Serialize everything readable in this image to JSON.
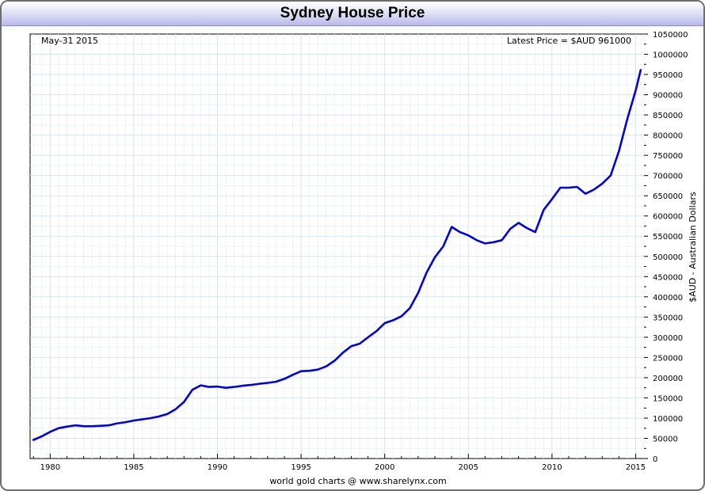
{
  "chart_data": {
    "type": "line",
    "title": "Sydney House Price",
    "date_label": "May-31  2015",
    "latest_label": "Latest Price = $AUD 961000",
    "ylabel": "$AUD - Australian Dollars",
    "footer": "world gold charts @ www.sharelynx.com",
    "xlim": [
      1978.8,
      2015.5
    ],
    "ylim": [
      0,
      1050000
    ],
    "x_ticks": [
      1980,
      1985,
      1990,
      1995,
      2000,
      2005,
      2010,
      2015
    ],
    "y_ticks": [
      0,
      50000,
      100000,
      150000,
      200000,
      250000,
      300000,
      350000,
      400000,
      450000,
      500000,
      550000,
      600000,
      650000,
      700000,
      750000,
      800000,
      850000,
      900000,
      950000,
      1000000,
      1050000
    ],
    "grid": true,
    "line_color": "#0000e6",
    "series": [
      {
        "x": [
          1979.0,
          1979.5,
          1980.0,
          1980.5,
          1981.0,
          1981.5,
          1982.0,
          1982.5,
          1983.0,
          1983.5,
          1984.0,
          1984.5,
          1985.0,
          1985.5,
          1986.0,
          1986.5,
          1987.0,
          1987.5,
          1988.0,
          1988.5,
          1989.0,
          1989.5,
          1990.0,
          1990.5,
          1991.0,
          1991.5,
          1992.0,
          1992.5,
          1993.0,
          1993.5,
          1994.0,
          1994.5,
          1995.0,
          1995.5,
          1996.0,
          1996.5,
          1997.0,
          1997.5,
          1998.0,
          1998.5,
          1999.0,
          1999.5,
          2000.0,
          2000.5,
          2001.0,
          2001.5,
          2002.0,
          2002.5,
          2003.0,
          2003.5,
          2004.0,
          2004.5,
          2005.0,
          2005.5,
          2006.0,
          2006.5,
          2007.0,
          2007.5,
          2008.0,
          2008.5,
          2009.0,
          2009.5,
          2010.0,
          2010.5,
          2011.0,
          2011.5,
          2012.0,
          2012.5,
          2013.0,
          2013.5,
          2014.0,
          2014.5,
          2015.0,
          2015.3
        ],
        "y": [
          46000,
          55000,
          66000,
          75000,
          79000,
          82000,
          80000,
          80000,
          81000,
          82000,
          87000,
          90000,
          94000,
          97000,
          100000,
          104000,
          110000,
          122000,
          140000,
          170000,
          181000,
          177000,
          178000,
          175000,
          177000,
          180000,
          182000,
          185000,
          187000,
          190000,
          197000,
          207000,
          216000,
          217000,
          220000,
          228000,
          242000,
          262000,
          278000,
          284000,
          300000,
          315000,
          335000,
          342000,
          352000,
          372000,
          410000,
          460000,
          498000,
          525000,
          573000,
          560000,
          552000,
          540000,
          532000,
          535000,
          540000,
          568000,
          583000,
          570000,
          560000,
          615000,
          642000,
          670000,
          670000,
          672000,
          655000,
          665000,
          680000,
          700000,
          760000,
          840000,
          910000,
          961000
        ]
      }
    ]
  }
}
